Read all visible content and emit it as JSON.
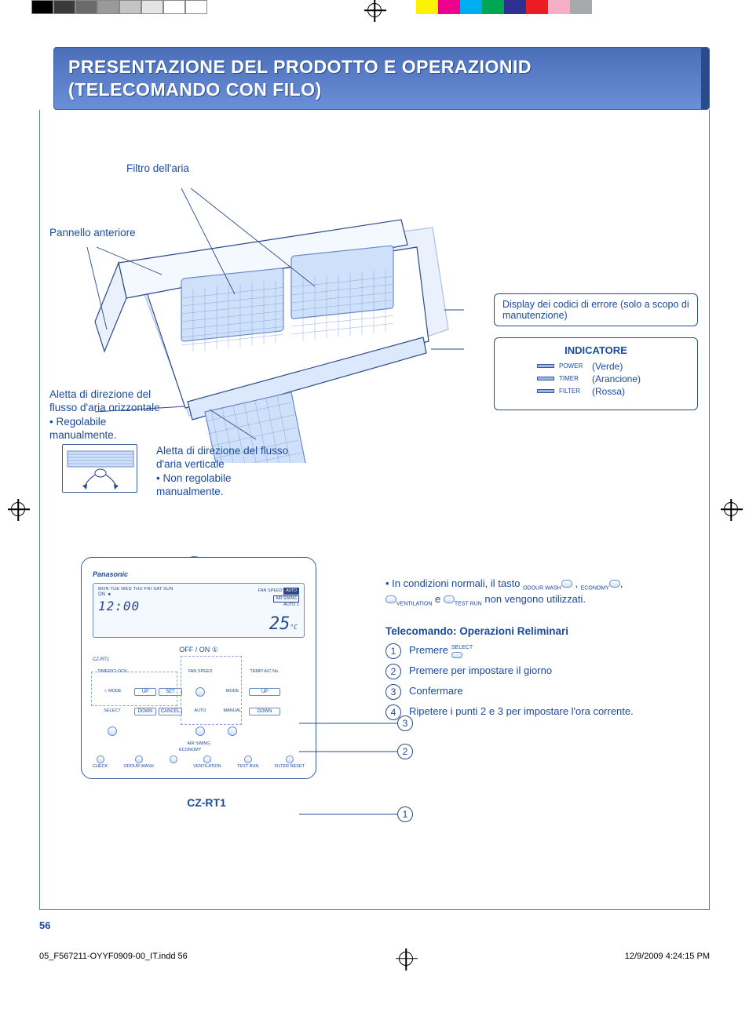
{
  "print": {
    "left_bars": [
      "#000000",
      "#3a3a3a",
      "#6a6a6a",
      "#9a9a9a",
      "#c4c4c4",
      "#e4e4e4",
      "#ffffff",
      "#ffffff"
    ],
    "right_bars": [
      "#fff200",
      "#ec008c",
      "#00aeef",
      "#00a651",
      "#2e3192",
      "#ed1c24",
      "#f6adc6",
      "#a7a9ac"
    ]
  },
  "header": {
    "line1": "PRESENTAZIONE DEL PRODOTTO E OPERAZIONID",
    "line2": "(TELECOMANDO CON FILO)"
  },
  "labels": {
    "filtro": "Filtro dell'aria",
    "pannello": "Pannello anteriore",
    "aletta_h_title": "Aletta di direzione del flusso d'aria orizzontale",
    "aletta_h_note": "• Regolabile manualmente.",
    "aletta_v_title": "Aletta di direzione del flusso d'aria verticale",
    "aletta_v_note": "• Non regolabile manualmente.",
    "display_box": "Display dei codici di errore (solo a scopo di manutenzione)",
    "indicatore_title": "INDICATORE",
    "indicators": [
      {
        "name": "POWER",
        "color": "(Verde)"
      },
      {
        "name": "TIMER",
        "color": "(Arancione)"
      },
      {
        "name": "FILTER",
        "color": "(Rossa)"
      }
    ]
  },
  "remote": {
    "brand": "Panasonic",
    "days": "MON TUE WED THU FRI SAT SUN",
    "on": "ON ◄",
    "time": "12:00",
    "fan_speed_lbl": "FAN SPEED",
    "auto_lbl": "AUTO",
    "air_swing_lbl": "AIR SWING",
    "auto1_lbl": "AUTO 1",
    "temp": "25",
    "temp_unit": "°C",
    "offon": "OFF / ON  ①",
    "model_tag": "CZ-RT1",
    "buttons": {
      "timerclock": "TIMER/CLOCK",
      "mode_icon": "☼ MODE",
      "up": "UP",
      "set": "SET",
      "fanspeed": "FAN SPEED",
      "mode": "MODE",
      "temp": "TEMP/ A/C No.",
      "upr": "UP",
      "select": "SELECT",
      "down": "DOWN",
      "cancel": "CANCEL",
      "auto": "AUTO",
      "manual": "MANUAL",
      "downr": "DOWN",
      "airswing": "AIR SWING",
      "check": "CHECK",
      "odour": "ODOUR WASH",
      "economy": "ECONOMY",
      "ventilation": "VENTILATION",
      "testrun": "TEST RUN",
      "filterreset": "FILTER RESET"
    },
    "label": "CZ-RT1"
  },
  "right": {
    "intro_pre": "• In condizioni normali, il tasto ",
    "intro_mid": ", ",
    "intro_e": " e ",
    "intro_post": " non vengono utilizzati.",
    "icons": {
      "odour": "ODOUR WASH",
      "economy": "ECONOMY",
      "ventilation": "VENTILATION",
      "testrun": "TEST RUN"
    },
    "steps_title": "Telecomando: Operazioni Reliminari",
    "steps": [
      {
        "n": "1",
        "text": "Premere",
        "icon": "SELECT"
      },
      {
        "n": "2",
        "text": "Premere per impostare il giorno"
      },
      {
        "n": "3",
        "text": "Confermare"
      },
      {
        "n": "4",
        "text": "Ripetere i punti 2 e 3 per impostare l'ora corrente."
      }
    ]
  },
  "leaders": [
    "3",
    "2",
    "1"
  ],
  "page_number": "56",
  "footer": {
    "left": "05_F567211-OYYF0909-00_IT.indd   56",
    "right": "12/9/2009   4:24:15 PM"
  },
  "colors": {
    "brand_blue": "#1a4aa0",
    "line_blue": "#2a4a8a",
    "light_blue": "#9ab4e4"
  }
}
